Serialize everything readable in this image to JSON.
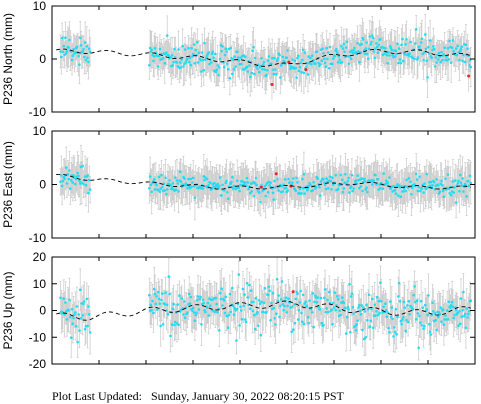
{
  "footer": {
    "label": "Plot Last Updated:",
    "timestamp": "Sunday, January 30, 2022 08:20:15 PST"
  },
  "colors": {
    "point": "#22ddf2",
    "errorbar": "#c8c8c8",
    "trend": "#000000",
    "outlier": "#ee2222",
    "frame": "#000000"
  },
  "chart_data": [
    {
      "type": "scatter",
      "ylabel": "P236 North (mm)",
      "ylim": [
        -10,
        10
      ],
      "yticks": [
        "10",
        "0",
        "-10"
      ],
      "ytick_values": [
        10,
        0,
        -10
      ],
      "xlim": [
        0,
        1
      ],
      "x_tick_count": 9,
      "noise": 1.3,
      "errorbar": 3.0,
      "segments": [
        [
          0.02,
          0.09
        ],
        [
          0.23,
          0.99
        ]
      ],
      "trend": [
        [
          0.01,
          1.5
        ],
        [
          0.09,
          1.4
        ],
        [
          0.23,
          0.8
        ],
        [
          0.38,
          0.0
        ],
        [
          0.5,
          -1.0
        ],
        [
          0.56,
          -1.2
        ],
        [
          0.62,
          0.0
        ],
        [
          0.72,
          1.2
        ],
        [
          0.78,
          1.5
        ],
        [
          0.88,
          1.3
        ],
        [
          0.99,
          0.5
        ]
      ],
      "wiggle": 0.4,
      "outliers": [
        [
          0.52,
          -4.8
        ],
        [
          0.6,
          -2.0
        ],
        [
          0.56,
          -0.6
        ],
        [
          0.985,
          -3.2
        ]
      ]
    },
    {
      "type": "scatter",
      "ylabel": "P236 East (mm)",
      "ylim": [
        -10,
        10
      ],
      "yticks": [
        "10",
        "0",
        "-10"
      ],
      "ytick_values": [
        10,
        0,
        -10
      ],
      "xlim": [
        0,
        1
      ],
      "x_tick_count": 9,
      "noise": 1.0,
      "errorbar": 3.2,
      "segments": [
        [
          0.02,
          0.09
        ],
        [
          0.23,
          0.99
        ]
      ],
      "trend": [
        [
          0.01,
          1.7
        ],
        [
          0.09,
          1.0
        ],
        [
          0.23,
          0.2
        ],
        [
          0.4,
          -0.6
        ],
        [
          0.55,
          -0.5
        ],
        [
          0.72,
          0.3
        ],
        [
          0.85,
          -0.5
        ],
        [
          0.99,
          -0.6
        ]
      ],
      "wiggle": 0.3,
      "outliers": [
        [
          0.53,
          2.0
        ],
        [
          0.495,
          -0.5
        ],
        [
          0.565,
          -0.3
        ]
      ]
    },
    {
      "type": "scatter",
      "ylabel": "P236 Up (mm)",
      "ylim": [
        -20,
        20
      ],
      "yticks": [
        "20",
        "10",
        "0",
        "-10",
        "-20"
      ],
      "ytick_values": [
        20,
        10,
        0,
        -10,
        -20
      ],
      "xlim": [
        0,
        1
      ],
      "x_tick_count": 9,
      "noise": 4.2,
      "errorbar": 6.5,
      "segments": [
        [
          0.02,
          0.09
        ],
        [
          0.23,
          0.99
        ]
      ],
      "trend": [
        [
          0.01,
          -2.0
        ],
        [
          0.09,
          -2.5
        ],
        [
          0.23,
          0.0
        ],
        [
          0.4,
          1.5
        ],
        [
          0.58,
          2.5
        ],
        [
          0.7,
          0.5
        ],
        [
          0.8,
          -0.5
        ],
        [
          0.88,
          -1.0
        ],
        [
          0.99,
          0.5
        ]
      ],
      "wiggle": 1.2,
      "outliers": [
        [
          0.57,
          7.0
        ]
      ]
    }
  ]
}
